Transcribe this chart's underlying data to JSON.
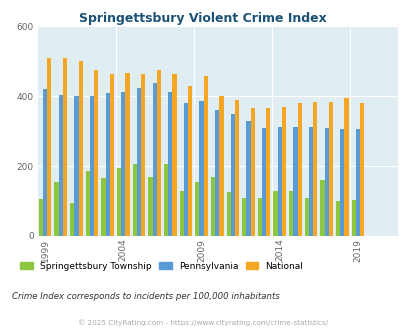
{
  "title": "Springettsbury Violent Crime Index",
  "years": [
    1999,
    2000,
    2001,
    2002,
    2003,
    2004,
    2005,
    2006,
    2007,
    2008,
    2009,
    2010,
    2011,
    2012,
    2013,
    2014,
    2015,
    2016,
    2017,
    2018,
    2019,
    2020,
    2021
  ],
  "springettsbury": [
    105,
    155,
    95,
    185,
    165,
    195,
    205,
    170,
    205,
    130,
    155,
    170,
    125,
    110,
    108,
    130,
    130,
    108,
    160,
    100,
    103,
    0,
    0
  ],
  "pennsylvania": [
    420,
    405,
    400,
    400,
    408,
    412,
    425,
    438,
    412,
    380,
    385,
    360,
    350,
    328,
    308,
    312,
    313,
    313,
    310,
    305,
    306,
    0,
    0
  ],
  "national": [
    510,
    510,
    500,
    475,
    465,
    468,
    465,
    475,
    465,
    430,
    458,
    400,
    390,
    365,
    365,
    370,
    382,
    383,
    383,
    395,
    381,
    0,
    0
  ],
  "colors": {
    "springettsbury": "#8dc63f",
    "pennsylvania": "#5b9bd5",
    "national": "#f5a623",
    "background": "#e0eef4",
    "fig_background": "#ffffff"
  },
  "ylim": [
    0,
    600
  ],
  "yticks": [
    0,
    200,
    400,
    600
  ],
  "subtitle": "Crime Index corresponds to incidents per 100,000 inhabitants",
  "footer": "© 2025 CityRating.com - https://www.cityrating.com/crime-statistics/",
  "xtick_years": [
    1999,
    2004,
    2009,
    2014,
    2019
  ],
  "legend_labels": [
    "Springettsbury Township",
    "Pennsylvania",
    "National"
  ],
  "title_color": "#1a5276",
  "subtitle_color": "#333333",
  "footer_color": "#aaaaaa"
}
